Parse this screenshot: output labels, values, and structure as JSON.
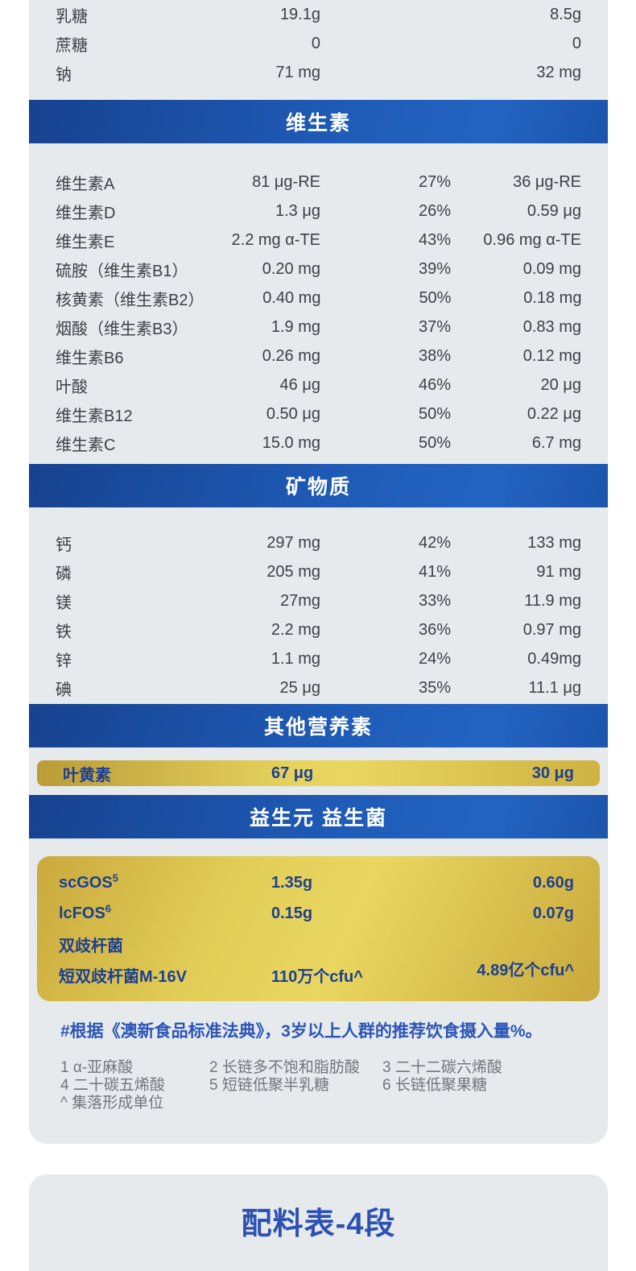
{
  "colors": {
    "card_bg": "#e7eaed",
    "header_blue_start": "#17428f",
    "header_blue_end": "#2263c1",
    "gold_light": "#e8d75f",
    "gold_dark": "#bb9c38",
    "text_dark": "#3c4147",
    "text_blue": "#1d3f92",
    "note_blue": "#2c55b5"
  },
  "card_nutrition": {
    "top_rows": [
      {
        "label": "乳糖",
        "v1": "19.1g",
        "pct": "",
        "v2": "8.5g"
      },
      {
        "label": "蔗糖",
        "v1": "0",
        "pct": "",
        "v2": "0"
      },
      {
        "label": "钠",
        "v1": "71 mg",
        "pct": "",
        "v2": "32 mg"
      }
    ],
    "vitamins": {
      "title": "维生素",
      "rows": [
        {
          "label": "维生素A",
          "v1": "81 μg-RE",
          "pct": "27%",
          "v2": "36 μg-RE"
        },
        {
          "label": "维生素D",
          "v1": "1.3 μg",
          "pct": "26%",
          "v2": "0.59 μg"
        },
        {
          "label": "维生素E",
          "v1": "2.2 mg α-TE",
          "pct": "43%",
          "v2": "0.96 mg α-TE"
        },
        {
          "label": "硫胺（维生素B1）",
          "v1": "0.20 mg",
          "pct": "39%",
          "v2": "0.09 mg"
        },
        {
          "label": "核黄素（维生素B2）",
          "v1": "0.40 mg",
          "pct": "50%",
          "v2": "0.18 mg"
        },
        {
          "label": "烟酸（维生素B3）",
          "v1": "1.9 mg",
          "pct": "37%",
          "v2": "0.83 mg"
        },
        {
          "label": "维生素B6",
          "v1": "0.26 mg",
          "pct": "38%",
          "v2": "0.12 mg"
        },
        {
          "label": "叶酸",
          "v1": "46 μg",
          "pct": "46%",
          "v2": "20 μg"
        },
        {
          "label": "维生素B12",
          "v1": "0.50 μg",
          "pct": "50%",
          "v2": "0.22 μg"
        },
        {
          "label": "维生素C",
          "v1": "15.0 mg",
          "pct": "50%",
          "v2": "6.7 mg"
        }
      ]
    },
    "minerals": {
      "title": "矿物质",
      "rows": [
        {
          "label": "钙",
          "v1": "297 mg",
          "pct": "42%",
          "v2": "133 mg"
        },
        {
          "label": "磷",
          "v1": "205 mg",
          "pct": "41%",
          "v2": "91 mg"
        },
        {
          "label": "镁",
          "v1": "27mg",
          "pct": "33%",
          "v2": "11.9 mg"
        },
        {
          "label": "铁",
          "v1": "2.2 mg",
          "pct": "36%",
          "v2": "0.97 mg"
        },
        {
          "label": "锌",
          "v1": "1.1 mg",
          "pct": "24%",
          "v2": "0.49mg"
        },
        {
          "label": "碘",
          "v1": "25 μg",
          "pct": "35%",
          "v2": "11.1 μg"
        }
      ]
    },
    "other_nutrients": {
      "title": "其他营养素",
      "row": {
        "label": "叶黄素",
        "v1": "67 μg",
        "v2": "30 μg"
      }
    },
    "probiotics": {
      "title": "益生元 益生菌",
      "rows": [
        {
          "label": "scGOS",
          "sup": "5",
          "v1": "1.35g",
          "v2": "0.60g"
        },
        {
          "label": "lcFOS",
          "sup": "6",
          "v1": "0.15g",
          "v2": "0.07g"
        },
        {
          "label": "双歧杆菌",
          "sup": "",
          "v1": "",
          "v2": ""
        },
        {
          "label": "短双歧杆菌M-16V",
          "sup": "",
          "v1": "110万个cfu^",
          "v2": "4.89亿个cfu^"
        }
      ]
    },
    "note": "#根据《澳新食品标准法典》，3岁以上人群的推荐饮食摄入量%。",
    "footnotes": [
      "1 α-亚麻酸",
      "2 长链多不饱和脂肪酸",
      "3 二十二碳六烯酸",
      "4 二十碳五烯酸",
      "5 短链低聚半乳糖",
      "6 长链低聚果糖",
      "^ 集落形成单位"
    ]
  },
  "card_ingredients": {
    "title": "配料表-4段"
  }
}
